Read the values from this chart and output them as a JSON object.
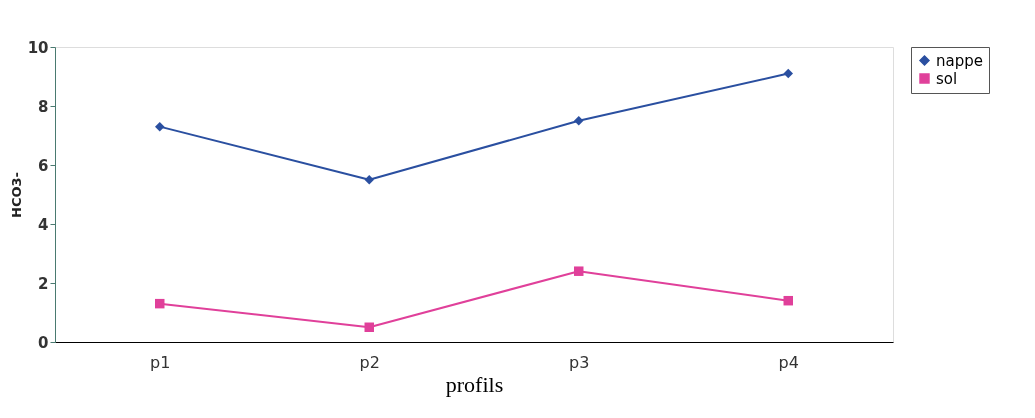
{
  "chart_data": {
    "type": "line",
    "xlabel": "profils",
    "ylabel": "HCO3-",
    "categories": [
      "p1",
      "p2",
      "p3",
      "p4"
    ],
    "series": [
      {
        "name": "nappe",
        "color": "#2a4fa0",
        "marker": "diamond",
        "values": [
          7.3,
          5.5,
          7.5,
          9.1
        ]
      },
      {
        "name": "sol",
        "color": "#e0409a",
        "marker": "square",
        "values": [
          1.3,
          0.5,
          2.4,
          1.4
        ]
      }
    ],
    "ylim": [
      0,
      10
    ],
    "yticks": [
      0,
      2,
      4,
      6,
      8,
      10
    ],
    "grid": false,
    "legend": "top right"
  }
}
